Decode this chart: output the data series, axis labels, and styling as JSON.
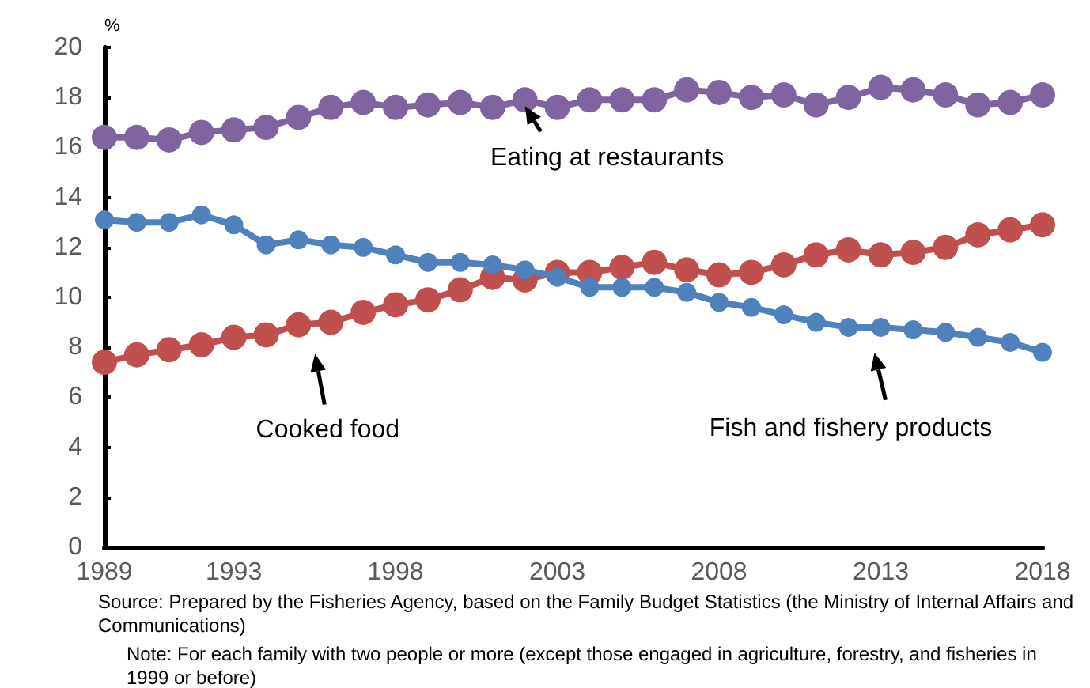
{
  "chart_data": {
    "type": "line",
    "ylabel": "%",
    "x": [
      1989,
      1990,
      1991,
      1992,
      1993,
      1994,
      1995,
      1996,
      1997,
      1998,
      1999,
      2000,
      2001,
      2002,
      2003,
      2004,
      2005,
      2006,
      2007,
      2008,
      2009,
      2010,
      2011,
      2012,
      2013,
      2014,
      2015,
      2016,
      2017,
      2018
    ],
    "xlim": [
      1989,
      2018
    ],
    "xticks": [
      1989,
      1993,
      1998,
      2003,
      2008,
      2013,
      2018
    ],
    "ylim": [
      0,
      20
    ],
    "yticks": [
      0,
      2,
      4,
      6,
      8,
      10,
      12,
      14,
      16,
      18,
      20
    ],
    "series": [
      {
        "name": "Eating at restaurants",
        "color": "#8064a2",
        "values": [
          16.4,
          16.4,
          16.3,
          16.6,
          16.7,
          16.8,
          17.2,
          17.6,
          17.8,
          17.6,
          17.7,
          17.8,
          17.6,
          17.9,
          17.6,
          17.9,
          17.9,
          17.9,
          18.3,
          18.2,
          18.0,
          18.1,
          17.7,
          18.0,
          18.4,
          18.3,
          18.1,
          17.7,
          17.8,
          18.1
        ]
      },
      {
        "name": "Cooked food",
        "color": "#c0504d",
        "values": [
          7.4,
          7.7,
          7.9,
          8.1,
          8.4,
          8.5,
          8.9,
          9.0,
          9.4,
          9.7,
          9.9,
          10.3,
          10.8,
          10.7,
          11.0,
          11.0,
          11.2,
          11.4,
          11.1,
          10.9,
          11.0,
          11.3,
          11.7,
          11.9,
          11.7,
          11.8,
          12.0,
          12.5,
          12.7,
          12.9
        ]
      },
      {
        "name": "Fish and fishery products",
        "color": "#4f81bd",
        "values": [
          13.1,
          13.0,
          13.0,
          13.3,
          12.9,
          12.1,
          12.3,
          12.1,
          12.0,
          11.7,
          11.4,
          11.4,
          11.3,
          11.1,
          10.8,
          10.4,
          10.4,
          10.4,
          10.2,
          9.8,
          9.6,
          9.3,
          9.0,
          8.8,
          8.8,
          8.7,
          8.6,
          8.4,
          8.2,
          7.8
        ]
      }
    ],
    "marker": "circle",
    "line_style": "solid",
    "grid": false,
    "legend": false,
    "annotations": [
      "Source: Prepared by the Fisheries Agency, based on the Family Budget Statistics (the Ministry of Internal Affairs and Communications)",
      "Note: For each family with two people or more (except those engaged in agriculture, forestry, and fisheries in 1999 or before)"
    ]
  }
}
